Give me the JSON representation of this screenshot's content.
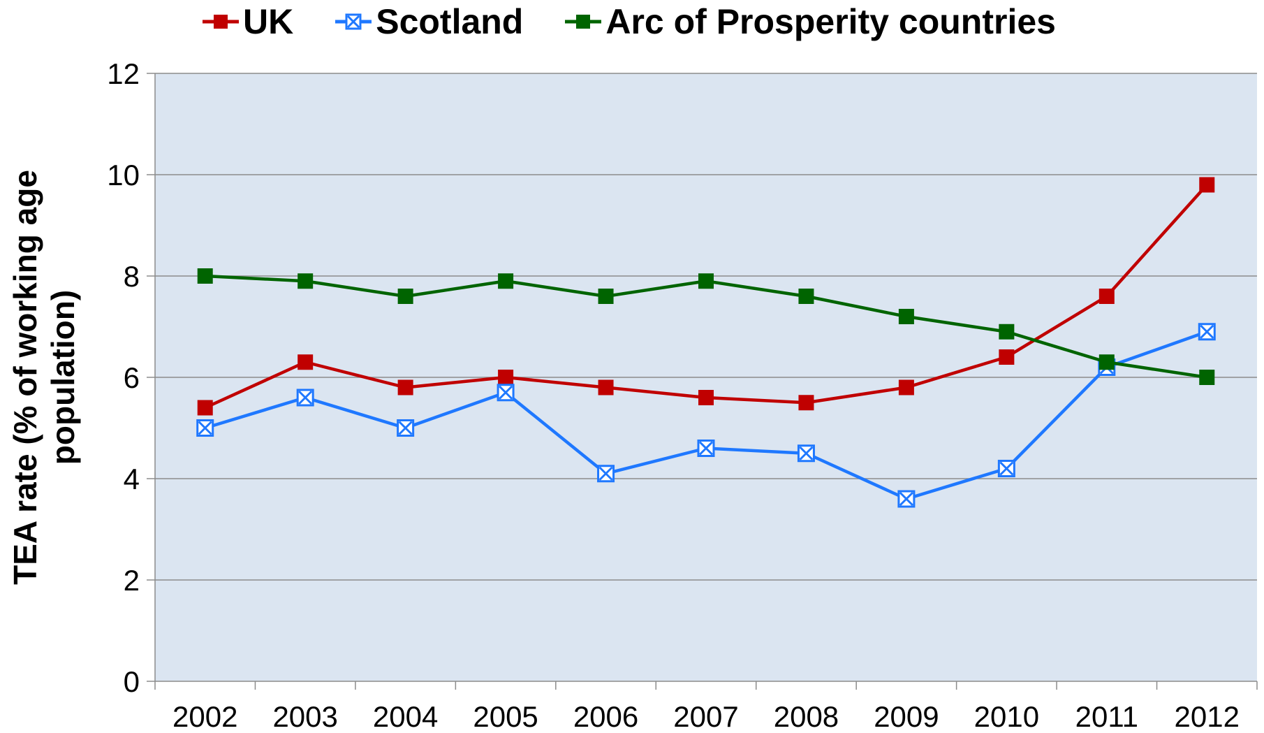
{
  "chart_data": {
    "type": "line",
    "title": "",
    "xlabel": "",
    "ylabel": "TEA rate (% of working age population)",
    "ylabel_lines": [
      "TEA rate (% of working age",
      "population)"
    ],
    "categories": [
      "2002",
      "2003",
      "2004",
      "2005",
      "2006",
      "2007",
      "2008",
      "2009",
      "2010",
      "2011",
      "2012"
    ],
    "ylim": [
      0,
      12
    ],
    "yticks": [
      "0",
      "2",
      "4",
      "6",
      "8",
      "10",
      "12"
    ],
    "grid": true,
    "plot_background": "#dbe5f1",
    "legend_position": "top",
    "series": [
      {
        "name": "UK",
        "color": "#c00000",
        "marker": "square",
        "values": [
          5.4,
          6.3,
          5.8,
          6.0,
          5.8,
          5.6,
          5.5,
          5.8,
          6.4,
          7.6,
          9.8
        ]
      },
      {
        "name": "Scotland",
        "color": "#1f78ff",
        "marker": "x-square",
        "values": [
          5.0,
          5.6,
          5.0,
          5.7,
          4.1,
          4.6,
          4.5,
          3.6,
          4.2,
          6.2,
          6.9
        ]
      },
      {
        "name": "Arc of Prosperity countries",
        "color": "#006400",
        "marker": "square",
        "values": [
          8.0,
          7.9,
          7.6,
          7.9,
          7.6,
          7.9,
          7.6,
          7.2,
          6.9,
          6.3,
          6.0
        ]
      }
    ]
  }
}
